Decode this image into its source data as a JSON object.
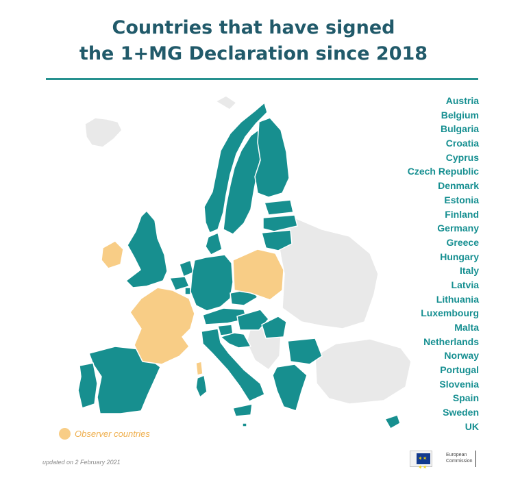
{
  "title": {
    "line1": "Countries that have signed",
    "line2": "the 1+MG Declaration since 2018"
  },
  "countries": [
    "Austria",
    "Belgium",
    "Bulgaria",
    "Croatia",
    "Cyprus",
    "Czech Republic",
    "Denmark",
    "Estonia",
    "Finland",
    "Germany",
    "Greece",
    "Hungary",
    "Italy",
    "Latvia",
    "Lithuania",
    "Luxembourg",
    "Malta",
    "Netherlands",
    "Norway",
    "Portugal",
    "Slovenia",
    "Spain",
    "Sweden",
    "UK"
  ],
  "legend": {
    "observer_label": "Observer countries"
  },
  "updated_text": "updated on 2 February 2021",
  "logo": {
    "line1": "European",
    "line2": "Commission",
    "icon": "eu-flag-icon"
  },
  "colors": {
    "signed": "#178f8f",
    "observer": "#f8cd86",
    "other": "#e9e9e9",
    "title": "#215a6a",
    "rule": "#26918f"
  }
}
